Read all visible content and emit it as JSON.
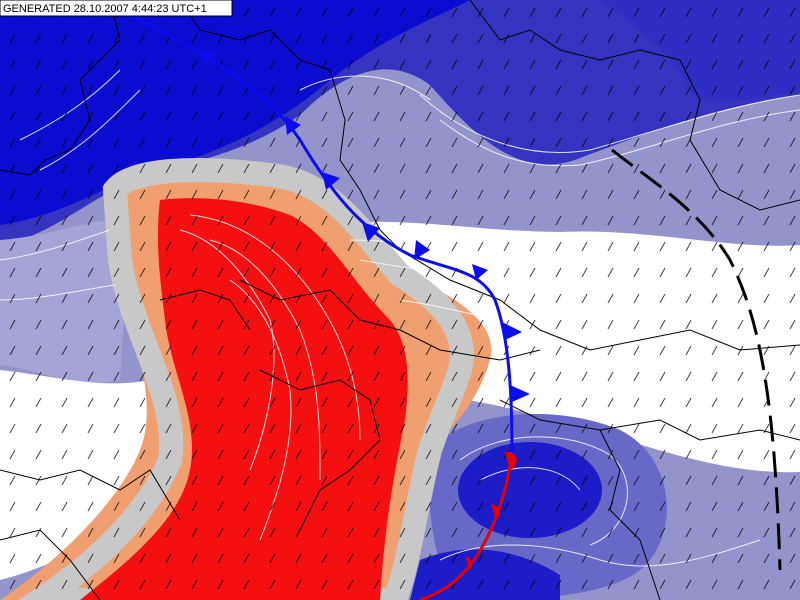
{
  "header": {
    "generated": "GENERATED 28.10.2007 4:44:23 UTC+1"
  }
}
